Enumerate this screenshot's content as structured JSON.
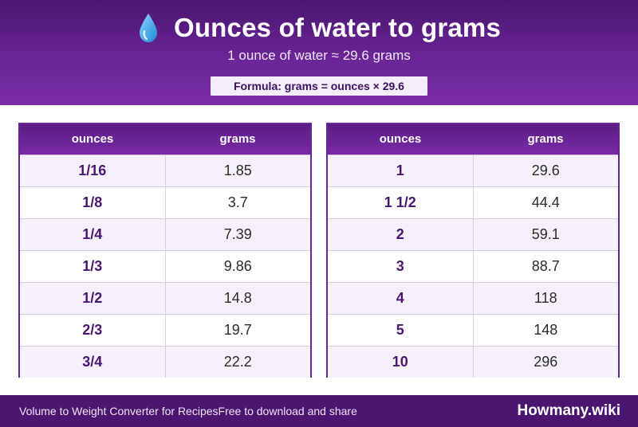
{
  "header": {
    "icon": "water-drop-icon",
    "title": "Ounces of water to grams",
    "subtitle": "1 ounce of water ≈ 29.6 grams",
    "formula": "Formula: grams = ounces × 29.6"
  },
  "tables": [
    {
      "col_ounces": "ounces",
      "col_grams": "grams",
      "rows": [
        {
          "ounces": "1/16",
          "grams": "1.85"
        },
        {
          "ounces": "1/8",
          "grams": "3.7"
        },
        {
          "ounces": "1/4",
          "grams": "7.39"
        },
        {
          "ounces": "1/3",
          "grams": "9.86"
        },
        {
          "ounces": "1/2",
          "grams": "14.8"
        },
        {
          "ounces": "2/3",
          "grams": "19.7"
        },
        {
          "ounces": "3/4",
          "grams": "22.2"
        }
      ]
    },
    {
      "col_ounces": "ounces",
      "col_grams": "grams",
      "rows": [
        {
          "ounces": "1",
          "grams": "29.6"
        },
        {
          "ounces": "1 1/2",
          "grams": "44.4"
        },
        {
          "ounces": "2",
          "grams": "59.1"
        },
        {
          "ounces": "3",
          "grams": "88.7"
        },
        {
          "ounces": "4",
          "grams": "118"
        },
        {
          "ounces": "5",
          "grams": "148"
        },
        {
          "ounces": "10",
          "grams": "296"
        }
      ]
    }
  ],
  "footer": {
    "left_text": "Volume to Weight Converter for Recipes",
    "left_text_2": "Free to download and share",
    "brand": "Howmany.wiki"
  },
  "colors": {
    "primary": "#6a2596",
    "dark": "#4a1670",
    "row_alt": "#f5f0fa"
  }
}
